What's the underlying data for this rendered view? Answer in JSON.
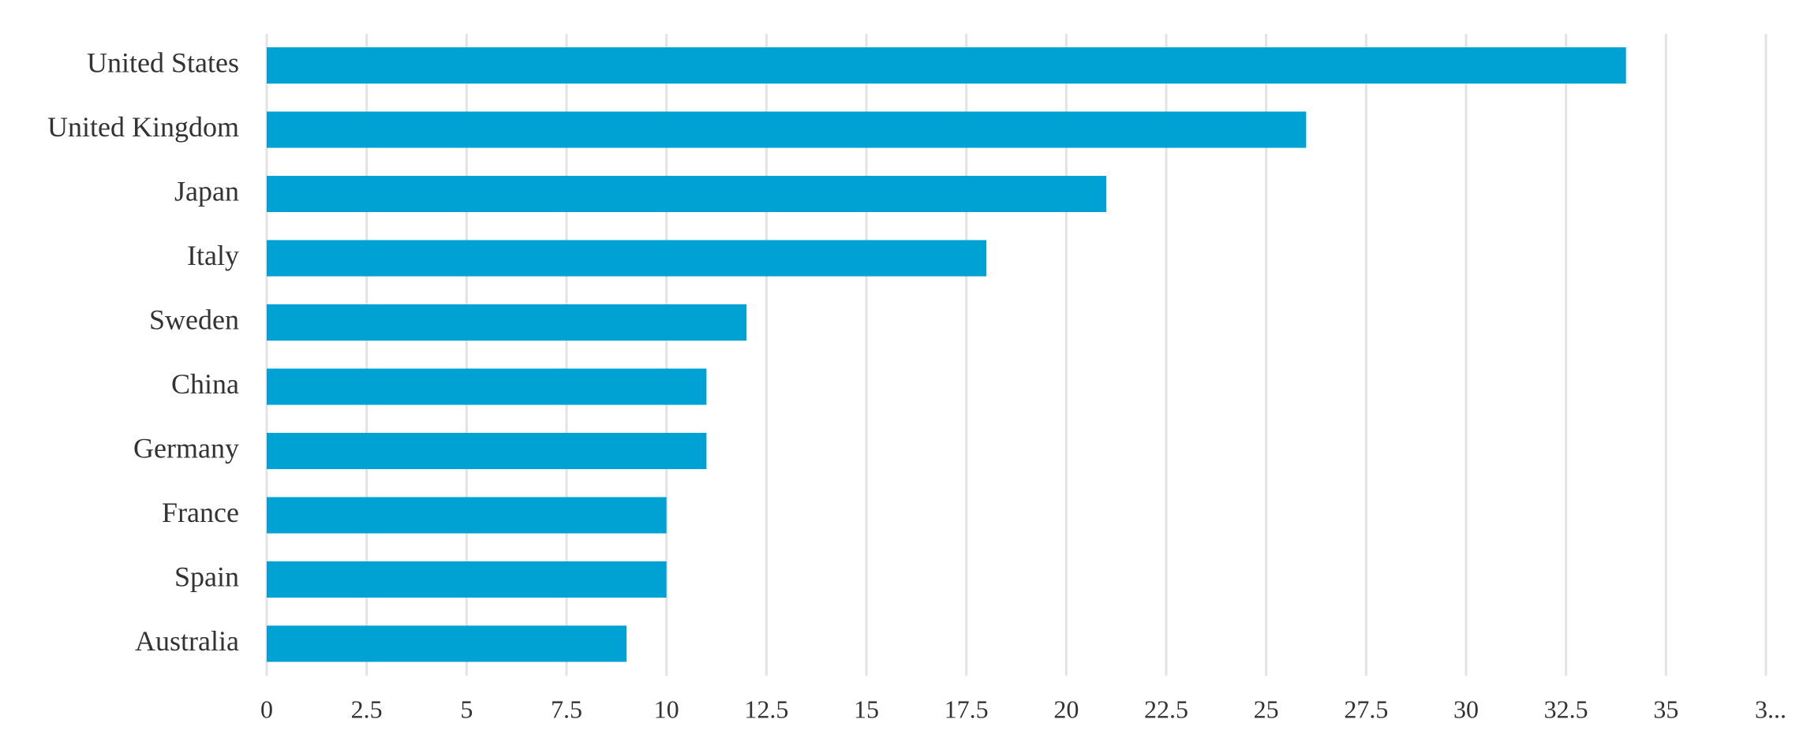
{
  "chart_data": {
    "type": "bar",
    "orientation": "horizontal",
    "categories": [
      "United States",
      "United Kingdom",
      "Japan",
      "Italy",
      "Sweden",
      "China",
      "Germany",
      "France",
      "Spain",
      "Australia"
    ],
    "values": [
      34,
      26,
      21,
      18,
      12,
      11,
      11,
      10,
      10,
      9
    ],
    "color": "#00a1d3",
    "xlim": [
      0,
      37.5
    ],
    "xticks": [
      0,
      2.5,
      5,
      7.5,
      10,
      12.5,
      15,
      17.5,
      20,
      22.5,
      25,
      27.5,
      30,
      32.5,
      35,
      {
        "value": 37.5,
        "label": "3..."
      }
    ],
    "grid": true
  }
}
